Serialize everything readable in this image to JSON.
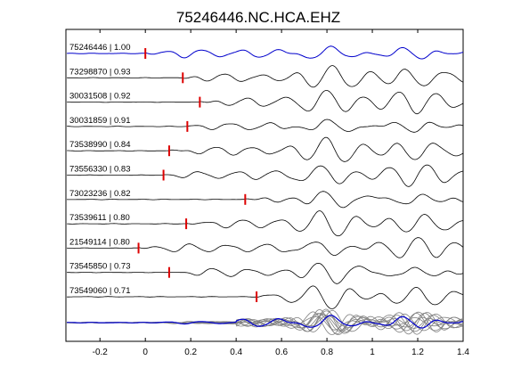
{
  "chart_data": {
    "type": "line",
    "title": "75246446.NC.HCA.EHZ",
    "xlabel": "",
    "ylabel": "",
    "xlim": [
      -0.35,
      1.4
    ],
    "x_ticks": [
      "-0.2",
      "0",
      "0.2",
      "0.4",
      "0.6",
      "0.8",
      "1",
      "1.2",
      "1.4"
    ],
    "x_tick_values": [
      -0.2,
      0,
      0.2,
      0.4,
      0.6,
      0.8,
      1.0,
      1.2,
      1.4
    ],
    "grid": false,
    "colors": {
      "reference_trace": "#0000cc",
      "trace": "#000000",
      "pick": "#dd0000",
      "stack_trace": "#808080",
      "stack_reference": "#0000cc"
    },
    "series": [
      {
        "label": "75246446 | 1.00",
        "event_id": "75246446",
        "correlation": 1.0,
        "pick_time": 0.0,
        "reference": true
      },
      {
        "label": "73298870 | 0.93",
        "event_id": "73298870",
        "correlation": 0.93,
        "pick_time": 0.165
      },
      {
        "label": "30031508 | 0.92",
        "event_id": "30031508",
        "correlation": 0.92,
        "pick_time": 0.24
      },
      {
        "label": "30031859 | 0.91",
        "event_id": "30031859",
        "correlation": 0.91,
        "pick_time": 0.185
      },
      {
        "label": "73538990 | 0.84",
        "event_id": "73538990",
        "correlation": 0.84,
        "pick_time": 0.105
      },
      {
        "label": "73556330 | 0.83",
        "event_id": "73556330",
        "correlation": 0.83,
        "pick_time": 0.08
      },
      {
        "label": "73023236 | 0.82",
        "event_id": "73023236",
        "correlation": 0.82,
        "pick_time": 0.44
      },
      {
        "label": "73539611 | 0.80",
        "event_id": "73539611",
        "correlation": 0.8,
        "pick_time": 0.18
      },
      {
        "label": "21549114 | 0.80",
        "event_id": "21549114",
        "correlation": 0.8,
        "pick_time": -0.03
      },
      {
        "label": "73545850 | 0.73",
        "event_id": "73545850",
        "correlation": 0.73,
        "pick_time": 0.105
      },
      {
        "label": "73549060 | 0.71",
        "event_id": "73549060",
        "correlation": 0.71,
        "pick_time": 0.49
      }
    ],
    "stack": {
      "description_visible": false,
      "trace_count": 11
    }
  }
}
